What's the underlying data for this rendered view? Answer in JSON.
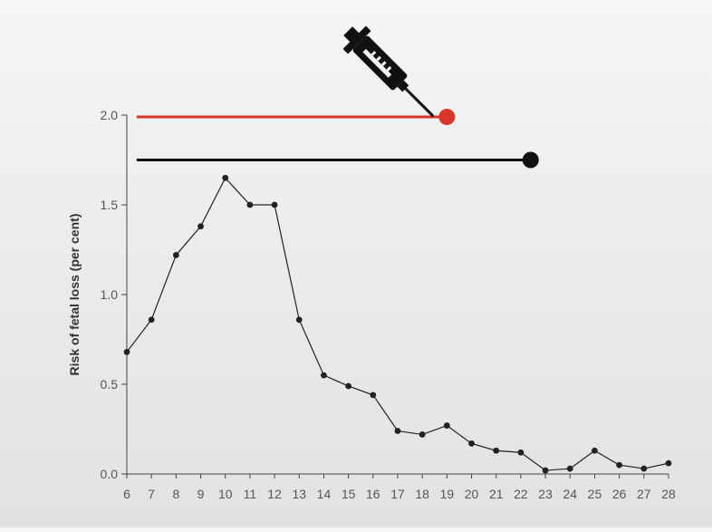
{
  "chart_data": {
    "type": "line",
    "title": "",
    "xlabel": "",
    "ylabel": "Risk of fetal loss (per cent)",
    "xlim": [
      6,
      28
    ],
    "ylim": [
      0,
      2
    ],
    "x": [
      6,
      7,
      8,
      9,
      10,
      11,
      12,
      13,
      14,
      15,
      16,
      17,
      18,
      19,
      20,
      21,
      22,
      23,
      24,
      25,
      26,
      27,
      28
    ],
    "xtick_labels": [
      "6",
      "7",
      "8",
      "9",
      "10",
      "11",
      "12",
      "13",
      "14",
      "15",
      "16",
      "17",
      "18",
      "19",
      "20",
      "21",
      "22",
      "23",
      "24",
      "25",
      "26",
      "27",
      "28"
    ],
    "ytick_labels": [
      "0.0",
      "0.5",
      "1.0",
      "1.5",
      "2.0"
    ],
    "yticks": [
      0,
      0.5,
      1.0,
      1.5,
      2.0
    ],
    "series": [
      {
        "values": [
          0.68,
          0.86,
          1.22,
          1.38,
          1.65,
          1.5,
          1.5,
          0.86,
          0.55,
          0.49,
          0.44,
          0.24,
          0.22,
          0.27,
          0.17,
          0.13,
          0.12,
          0.02,
          0.03,
          0.13,
          0.05,
          0.03,
          0.06
        ],
        "color": "#222222"
      }
    ],
    "annotations": [
      {
        "kind": "range-line",
        "y": 1.99,
        "x_start": 6.4,
        "x_end": 19.0,
        "color": "#d9362b"
      },
      {
        "kind": "range-line",
        "y": 1.75,
        "x_start": 6.4,
        "x_end": 22.4,
        "color": "#111111"
      }
    ],
    "icons": [
      {
        "name": "syringe-icon",
        "color": "#111111"
      }
    ],
    "grid": false,
    "legend": "none"
  }
}
